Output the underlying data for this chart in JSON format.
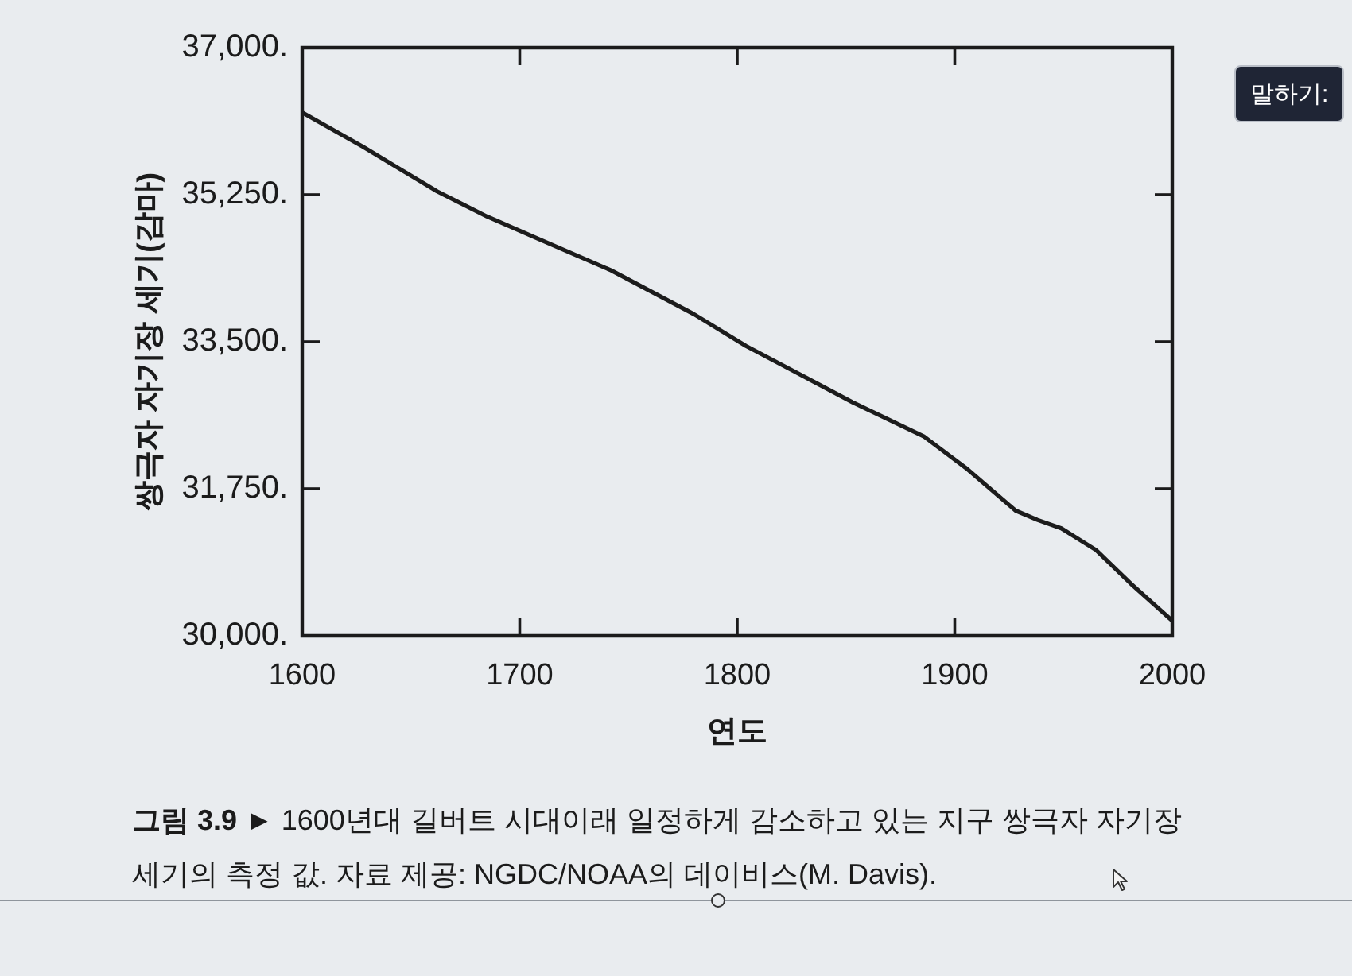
{
  "chart_data": {
    "type": "line",
    "xlabel": "연도",
    "ylabel": "쌍극자 자기장 세기(감마)",
    "annotations": [
      "그림 3.9 ►",
      "1600년대 길버트 시대이래 일정하게 감소하고 있는 지구 쌍극자 자기장 세기의 측정 값. 자료 제공: NGDC/NOAA의 데이비스(M. Davis).",
      "말하기:"
    ],
    "x": [
      1600,
      1628,
      1662,
      1685,
      1708,
      1742,
      1780,
      1804,
      1826,
      1853,
      1886,
      1906,
      1928,
      1938,
      1949,
      1965,
      1981,
      2000
    ],
    "series": [
      {
        "color": "#1c1c1c",
        "values": [
          36230,
          35820,
          35290,
          34990,
          34730,
          34350,
          33830,
          33450,
          33150,
          32780,
          32370,
          31980,
          31490,
          31380,
          31280,
          31020,
          30620,
          30180
        ]
      }
    ],
    "xlim": [
      1600,
      2000
    ],
    "xticks": [
      1600,
      1700,
      1800,
      1900,
      2000
    ],
    "ylim": [
      30000,
      37000
    ],
    "yticks": [
      {
        "value": 30000,
        "label": "30,000."
      },
      {
        "value": 31750,
        "label": "31,750."
      },
      {
        "value": 33500,
        "label": "33,500."
      },
      {
        "value": 35250,
        "label": "35,250."
      },
      {
        "value": 37000,
        "label": "37,000."
      }
    ],
    "marker": "none"
  }
}
